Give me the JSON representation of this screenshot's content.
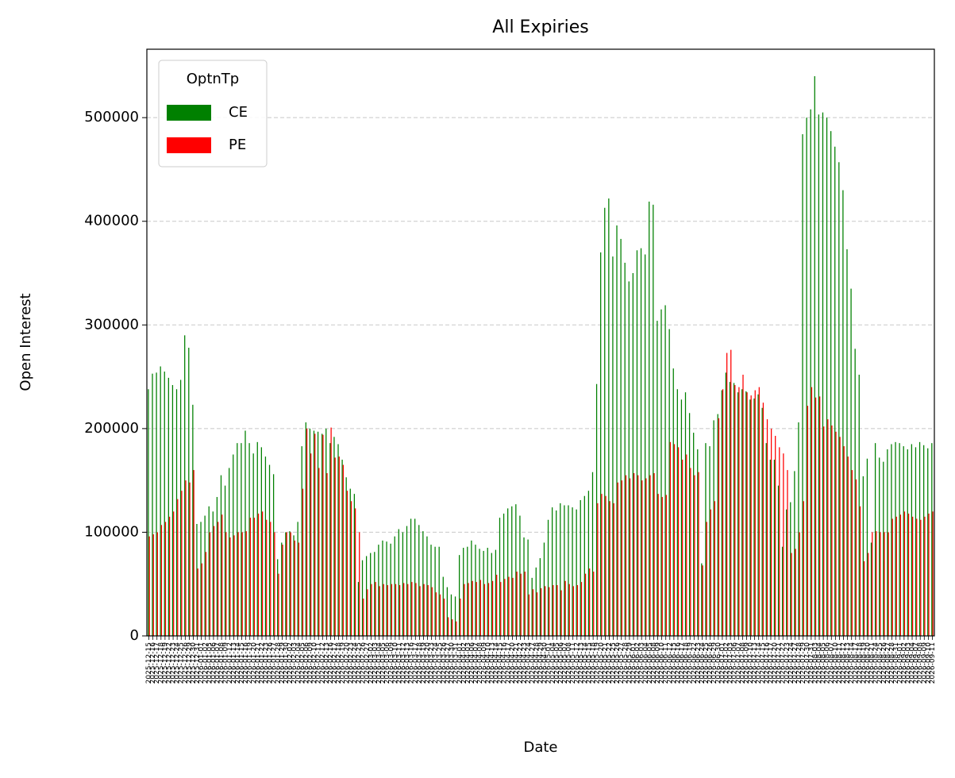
{
  "chart_data": {
    "type": "bar",
    "title": "All Expiries",
    "x_label": "Date",
    "y_label": "Open Interest",
    "legend_title": "OptnTp",
    "legend_position": "upper left",
    "grid": true,
    "ylim": [
      0,
      566000
    ],
    "yticks": [
      0,
      100000,
      200000,
      300000,
      400000,
      500000
    ],
    "categories": [
      "2025-12-15",
      "2025-12-16",
      "2025-12-17",
      "2025-12-18",
      "2025-12-19",
      "2025-12-22",
      "2025-12-23",
      "2025-12-24",
      "2025-12-25",
      "2025-12-26",
      "2025-12-29",
      "2025-12-30",
      "2025-12-31",
      "2026-01-01",
      "2026-01-02",
      "2026-01-05",
      "2026-01-06",
      "2026-01-07",
      "2026-01-08",
      "2026-01-09",
      "2026-01-12",
      "2026-01-13",
      "2026-01-14",
      "2026-01-15",
      "2026-01-16",
      "2026-01-19",
      "2026-01-20",
      "2026-01-21",
      "2026-01-22",
      "2026-01-23",
      "2026-01-26",
      "2026-01-27",
      "2026-01-28",
      "2026-01-29",
      "2026-01-30",
      "2026-02-02",
      "2026-02-03",
      "2026-02-04",
      "2026-02-05",
      "2026-02-06",
      "2026-02-09",
      "2026-02-10",
      "2026-02-11",
      "2026-02-12",
      "2026-02-13",
      "2026-02-16",
      "2026-02-17",
      "2026-02-18",
      "2026-02-19",
      "2026-02-20",
      "2026-02-23",
      "2026-02-24",
      "2026-02-25",
      "2026-02-26",
      "2026-02-27",
      "2026-03-02",
      "2026-03-03",
      "2026-03-04",
      "2026-03-05",
      "2026-03-06",
      "2026-03-09",
      "2026-03-10",
      "2026-03-11",
      "2026-03-12",
      "2026-03-13",
      "2026-03-16",
      "2026-03-17",
      "2026-03-18",
      "2026-03-19",
      "2026-03-20",
      "2026-03-23",
      "2026-03-24",
      "2026-03-25",
      "2026-03-26",
      "2026-03-27",
      "2026-03-30",
      "2026-03-31",
      "2026-04-01",
      "2026-04-02",
      "2026-04-03",
      "2026-04-06",
      "2026-04-07",
      "2026-04-08",
      "2026-04-09",
      "2026-04-10",
      "2026-04-13",
      "2026-04-14",
      "2026-04-15",
      "2026-04-16",
      "2026-04-17",
      "2026-04-20",
      "2026-04-21",
      "2026-04-22",
      "2026-04-23",
      "2026-04-24",
      "2026-04-27",
      "2026-04-28",
      "2026-04-29",
      "2026-04-30",
      "2026-05-01",
      "2026-05-04",
      "2026-05-05",
      "2026-05-06",
      "2026-05-07",
      "2026-05-08",
      "2026-05-11",
      "2026-05-12",
      "2026-05-13",
      "2026-05-14",
      "2026-05-15",
      "2026-05-18",
      "2026-05-19",
      "2026-05-20",
      "2026-05-21",
      "2026-05-22",
      "2026-05-25",
      "2026-05-26",
      "2026-05-27",
      "2026-05-28",
      "2026-05-29",
      "2026-06-01",
      "2026-06-02",
      "2026-06-03",
      "2026-06-04",
      "2026-06-05",
      "2026-06-08",
      "2026-06-09",
      "2026-06-10",
      "2026-06-11",
      "2026-06-12",
      "2026-06-15",
      "2026-06-16",
      "2026-06-17",
      "2026-06-18",
      "2026-06-19",
      "2026-06-22",
      "2026-06-23",
      "2026-06-24",
      "2026-06-25",
      "2026-06-26",
      "2026-06-29",
      "2026-06-30",
      "2026-07-01",
      "2026-07-02",
      "2026-07-03",
      "2026-07-06",
      "2026-07-07",
      "2026-07-08",
      "2026-07-09",
      "2026-07-10",
      "2026-07-13",
      "2026-07-14",
      "2026-07-15",
      "2026-07-16",
      "2026-07-17",
      "2026-07-20",
      "2026-07-21",
      "2026-07-22",
      "2026-07-23",
      "2026-07-24",
      "2026-07-27",
      "2026-07-28",
      "2026-07-29",
      "2026-07-30",
      "2026-07-31",
      "2026-08-03",
      "2026-08-04",
      "2026-08-05",
      "2026-08-06",
      "2026-08-07",
      "2026-08-10",
      "2026-08-11",
      "2026-08-12",
      "2026-08-13",
      "2026-08-14",
      "2026-08-17",
      "2026-08-18",
      "2026-08-19",
      "2026-08-20",
      "2026-08-21",
      "2026-08-24",
      "2026-08-25",
      "2026-08-26",
      "2026-08-27",
      "2026-08-28",
      "2026-08-31",
      "2026-09-01",
      "2026-09-02",
      "2026-09-03",
      "2026-09-04",
      "2026-09-07",
      "2026-09-08",
      "2026-09-09",
      "2026-09-10",
      "2026-09-11"
    ],
    "series": [
      {
        "name": "CE",
        "color": "#008000",
        "values": [
          238000,
          253000,
          254000,
          260000,
          255000,
          249000,
          242000,
          238000,
          247000,
          290000,
          278000,
          223000,
          108000,
          110000,
          116000,
          125000,
          120000,
          134000,
          155000,
          145000,
          162000,
          175000,
          186000,
          186000,
          198000,
          186000,
          176000,
          187000,
          182000,
          173000,
          165000,
          156000,
          74000,
          90000,
          100000,
          101000,
          97000,
          110000,
          183000,
          206000,
          200000,
          198000,
          197000,
          195000,
          200000,
          186000,
          192000,
          185000,
          170000,
          153000,
          142000,
          137000,
          52000,
          73000,
          77000,
          80000,
          81000,
          88000,
          92000,
          91000,
          89000,
          96000,
          103000,
          100000,
          106000,
          113000,
          113000,
          107000,
          101000,
          96000,
          88000,
          86000,
          86000,
          57000,
          47000,
          40000,
          38000,
          78000,
          85000,
          86000,
          92000,
          88000,
          84000,
          82000,
          85000,
          80000,
          83000,
          114000,
          118000,
          123000,
          125000,
          127000,
          116000,
          95000,
          93000,
          56000,
          66000,
          75000,
          90000,
          112000,
          124000,
          121000,
          128000,
          126000,
          126000,
          124000,
          122000,
          131000,
          135000,
          140000,
          158000,
          243000,
          370000,
          413000,
          422000,
          366000,
          396000,
          383000,
          360000,
          342000,
          350000,
          372000,
          374000,
          368000,
          419000,
          416000,
          304000,
          315000,
          319000,
          296000,
          258000,
          238000,
          228000,
          235000,
          215000,
          196000,
          180000,
          70000,
          186000,
          183000,
          208000,
          214000,
          237000,
          254000,
          245000,
          244000,
          235000,
          238000,
          236000,
          228000,
          229000,
          233000,
          220000,
          186000,
          170000,
          170000,
          145000,
          86000,
          122000,
          129000,
          159000,
          206000,
          484000,
          500000,
          508000,
          540000,
          503000,
          505000,
          500000,
          487000,
          472000,
          457000,
          430000,
          373000,
          335000,
          277000,
          252000,
          154000,
          171000,
          90000,
          186000,
          172000,
          168000,
          180000,
          185000,
          187000,
          186000,
          183000,
          180000,
          185000,
          182000,
          187000,
          184000,
          181000,
          186000
        ]
      },
      {
        "name": "PE",
        "color": "#ff0000",
        "values": [
          96000,
          98000,
          100000,
          107000,
          110000,
          115000,
          120000,
          132000,
          140000,
          150000,
          148000,
          160000,
          65000,
          70000,
          81000,
          100000,
          106000,
          110000,
          117000,
          100000,
          95000,
          97000,
          100000,
          100000,
          101000,
          114000,
          114000,
          118000,
          120000,
          112000,
          110000,
          100000,
          60000,
          88000,
          100000,
          100000,
          92000,
          90000,
          142000,
          200000,
          176000,
          195000,
          162000,
          194000,
          157000,
          201000,
          172000,
          173000,
          165000,
          140000,
          130000,
          123000,
          100000,
          36000,
          45000,
          50000,
          52000,
          48000,
          50000,
          49000,
          50000,
          50000,
          49000,
          51000,
          50000,
          52000,
          51000,
          48000,
          50000,
          49000,
          47000,
          42000,
          40000,
          36000,
          18000,
          16000,
          14000,
          36000,
          50000,
          51000,
          53000,
          52000,
          54000,
          50000,
          51000,
          53000,
          59000,
          52000,
          55000,
          57000,
          56000,
          62000,
          60000,
          62000,
          40000,
          45000,
          42000,
          46000,
          48000,
          47000,
          49000,
          49000,
          44000,
          53000,
          50000,
          48000,
          49000,
          52000,
          60000,
          65000,
          62000,
          128000,
          137000,
          135000,
          130000,
          128000,
          148000,
          150000,
          155000,
          152000,
          157000,
          155000,
          150000,
          152000,
          155000,
          157000,
          137000,
          134000,
          136000,
          187000,
          185000,
          182000,
          170000,
          175000,
          162000,
          155000,
          158000,
          68000,
          110000,
          122000,
          130000,
          210000,
          238000,
          273000,
          276000,
          242000,
          240000,
          252000,
          235000,
          232000,
          237000,
          240000,
          225000,
          209000,
          200000,
          193000,
          182000,
          176000,
          160000,
          80000,
          84000,
          100000,
          130000,
          222000,
          240000,
          230000,
          231000,
          202000,
          209000,
          203000,
          197000,
          192000,
          183000,
          173000,
          160000,
          151000,
          125000,
          72000,
          80000,
          100000,
          101000,
          100000,
          100000,
          100000,
          113000,
          115000,
          117000,
          120000,
          118000,
          115000,
          113000,
          112000,
          115000,
          118000,
          120000
        ]
      }
    ]
  }
}
